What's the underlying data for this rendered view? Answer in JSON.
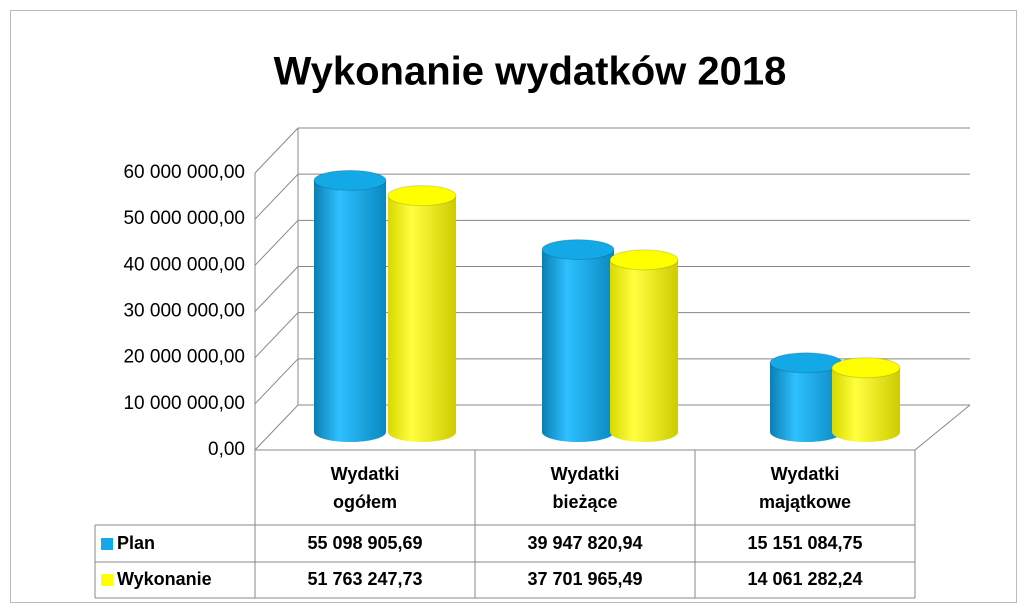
{
  "chart_data": {
    "type": "bar3d",
    "title": "Wykonanie wydatków 2018",
    "categories": [
      "Wydatki ogółem",
      "Wydatki bieżące",
      "Wydatki majątkowe"
    ],
    "series": [
      {
        "name": "Plan",
        "color": "#12a9e6",
        "values": [
          55098905.69,
          39947820.94,
          15151084.75
        ],
        "value_labels": [
          "55 098 905,69",
          "39 947 820,94",
          "15 151 084,75"
        ]
      },
      {
        "name": "Wykonanie",
        "color": "#ffff00",
        "values": [
          51763247.73,
          37701965.49,
          14061282.24
        ],
        "value_labels": [
          "51 763 247,73",
          "37 701 965,49",
          "14 061 282,24"
        ]
      }
    ],
    "ylim": [
      0,
      60000000
    ],
    "yticks": [
      {
        "value": 0,
        "label": "0,00"
      },
      {
        "value": 10000000,
        "label": "10 000 000,00"
      },
      {
        "value": 20000000,
        "label": "20 000 000,00"
      },
      {
        "value": 30000000,
        "label": "30 000 000,00"
      },
      {
        "value": 40000000,
        "label": "40 000 000,00"
      },
      {
        "value": 50000000,
        "label": "50 000 000,00"
      },
      {
        "value": 60000000,
        "label": "60 000 000,00"
      }
    ],
    "grid": true
  }
}
